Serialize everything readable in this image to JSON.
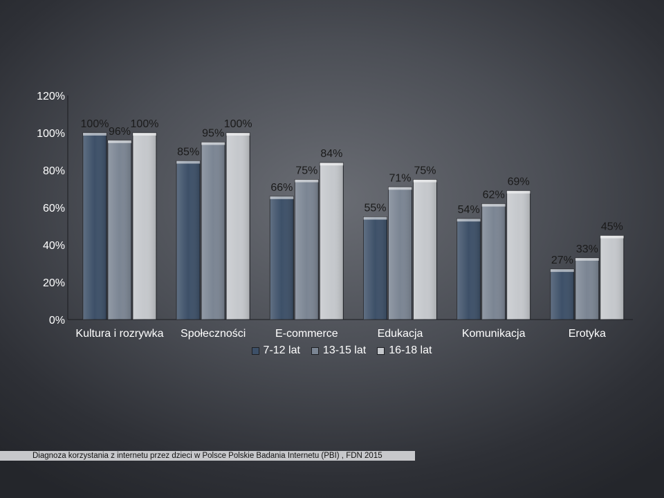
{
  "chart_data": {
    "type": "bar",
    "categories": [
      "Kultura i rozrywka",
      "Społeczności",
      "E-commerce",
      "Edukacja",
      "Komunikacja",
      "Erotyka"
    ],
    "series": [
      {
        "name": "7-12 lat",
        "color": "#3d5068",
        "values": [
          100,
          85,
          66,
          55,
          54,
          27
        ]
      },
      {
        "name": "13-15 lat",
        "color": "#7b8593",
        "values": [
          96,
          95,
          75,
          71,
          62,
          33
        ]
      },
      {
        "name": "16-18 lat",
        "color": "#c5c8cc",
        "values": [
          100,
          100,
          84,
          75,
          69,
          45
        ]
      }
    ],
    "ylim": [
      0,
      120
    ],
    "yticks": [
      0,
      20,
      40,
      60,
      80,
      100,
      120
    ],
    "ytick_labels": [
      "0%",
      "20%",
      "40%",
      "60%",
      "80%",
      "100%",
      "120%"
    ],
    "data_labels": [
      [
        "100%",
        "85%",
        "66%",
        "55%",
        "54%",
        "27%"
      ],
      [
        "96%",
        "95%",
        "75%",
        "71%",
        "62%",
        "33%"
      ],
      [
        "100%",
        "100%",
        "84%",
        "75%",
        "69%",
        "45%"
      ]
    ],
    "legend_position": "bottom",
    "grid": false
  },
  "source": "Diagnoza korzystania z internetu przez dzieci w Polsce  Polskie Badania Internetu (PBI) , FDN 2015"
}
